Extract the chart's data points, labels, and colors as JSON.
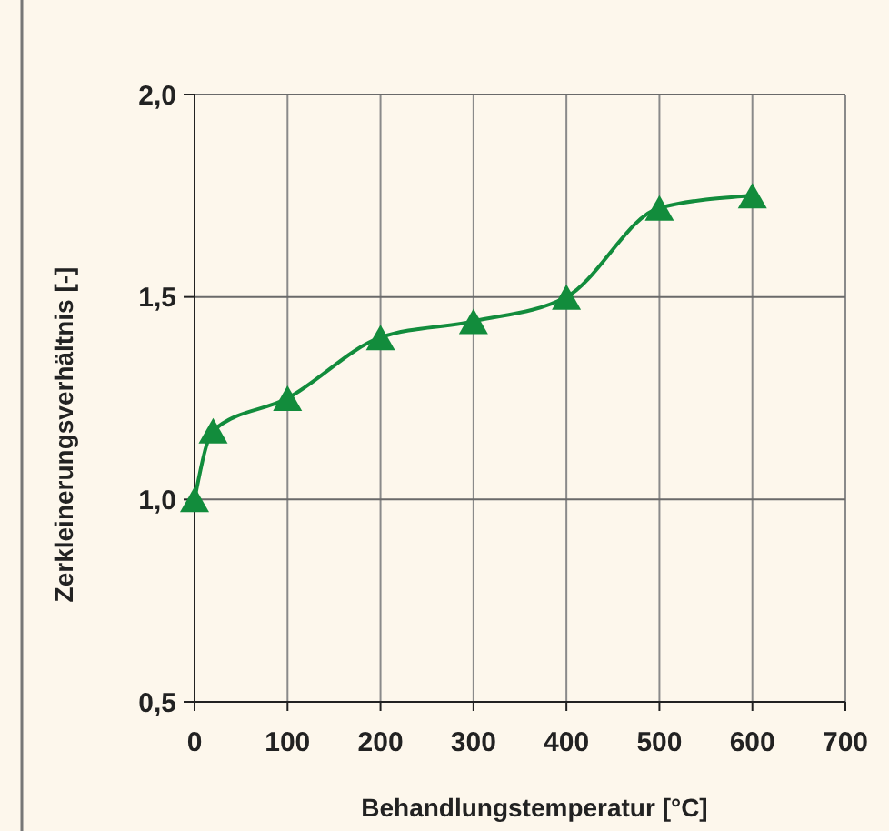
{
  "chart_data": {
    "type": "line",
    "xlabel": "Behandlungstemperatur [°C]",
    "ylabel": "Zerkleinerungsverhältnis [-]",
    "x": [
      0,
      20,
      100,
      200,
      300,
      400,
      500,
      600
    ],
    "series": [
      {
        "color": "#128c3c",
        "values": [
          1.0,
          1.17,
          1.25,
          1.4,
          1.44,
          1.5,
          1.72,
          1.75
        ]
      }
    ],
    "xlim": [
      0,
      700
    ],
    "xticks": [
      0,
      100,
      200,
      300,
      400,
      500,
      600,
      700
    ],
    "ylim": [
      0.5,
      2.0
    ],
    "yticks": [
      {
        "value": 0.5,
        "label": "0,5"
      },
      {
        "value": 1.0,
        "label": "1,0"
      },
      {
        "value": 1.5,
        "label": "1,5"
      },
      {
        "value": 2.0,
        "label": "2,0"
      }
    ],
    "grid": true,
    "marker": "triangle",
    "line_style": "solid"
  }
}
